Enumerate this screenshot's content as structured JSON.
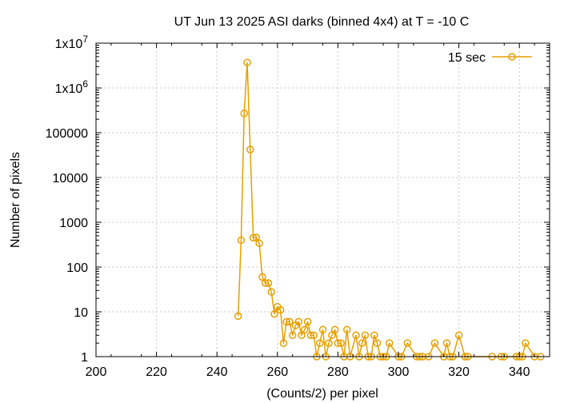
{
  "chart_data": {
    "type": "scatter",
    "title": "UT Jun 13 2025 ASI darks (binned 4x4) at T = -10 C",
    "xlabel": "(Counts/2) per pixel",
    "ylabel": "Number of pixels",
    "xlim": [
      200,
      350
    ],
    "ylim": [
      1,
      10000000
    ],
    "y_scale": "log",
    "grid": true,
    "legend_position": "top-right",
    "line_color": "#e69f00",
    "x_ticks": [
      200,
      220,
      240,
      260,
      280,
      300,
      320,
      340
    ],
    "x_tick_labels": [
      "200",
      "220",
      "240",
      "260",
      "280",
      "300",
      "320",
      "340"
    ],
    "y_ticks": [
      {
        "value": 1,
        "label": "1"
      },
      {
        "value": 10,
        "label": "10"
      },
      {
        "value": 100,
        "label": "100"
      },
      {
        "value": 1000,
        "label": "1000"
      },
      {
        "value": 10000,
        "label": "10000"
      },
      {
        "value": 100000,
        "label": "100000"
      },
      {
        "value": 1000000,
        "label": "1x10",
        "sup": "6"
      },
      {
        "value": 10000000,
        "label": "1x10",
        "sup": "7"
      }
    ],
    "series": [
      {
        "name": "15 sec",
        "x": [
          247,
          248,
          249,
          250,
          251,
          252,
          253,
          254,
          255,
          256,
          257,
          258,
          259,
          260,
          261,
          262,
          263,
          264,
          265,
          266,
          267,
          268,
          269,
          270,
          271,
          272,
          273,
          274,
          275,
          276,
          277,
          278,
          279,
          280,
          281,
          282,
          283,
          284,
          286,
          287,
          288,
          289,
          290,
          291,
          292,
          293,
          294,
          295,
          296,
          297,
          300,
          301,
          303,
          306,
          307,
          308,
          310,
          312,
          315,
          316,
          317,
          318,
          320,
          322,
          323,
          331,
          334,
          335,
          339,
          340,
          341,
          342,
          345,
          347
        ],
        "values": [
          8,
          400,
          270000,
          3700000,
          42000,
          450,
          460,
          340,
          60,
          44,
          44,
          28,
          9,
          13,
          11,
          2,
          6,
          6,
          3,
          5,
          6,
          3,
          4,
          6,
          3,
          3,
          1,
          2,
          4,
          1,
          2,
          3,
          4,
          2,
          2,
          1,
          4,
          1,
          3,
          1,
          2,
          3,
          1,
          1,
          3,
          2,
          1,
          1,
          1,
          2,
          1,
          1,
          2,
          1,
          1,
          1,
          1,
          2,
          1,
          2,
          1,
          1,
          3,
          1,
          1,
          1,
          1,
          1,
          1,
          1,
          1,
          2,
          1,
          1
        ]
      }
    ]
  }
}
